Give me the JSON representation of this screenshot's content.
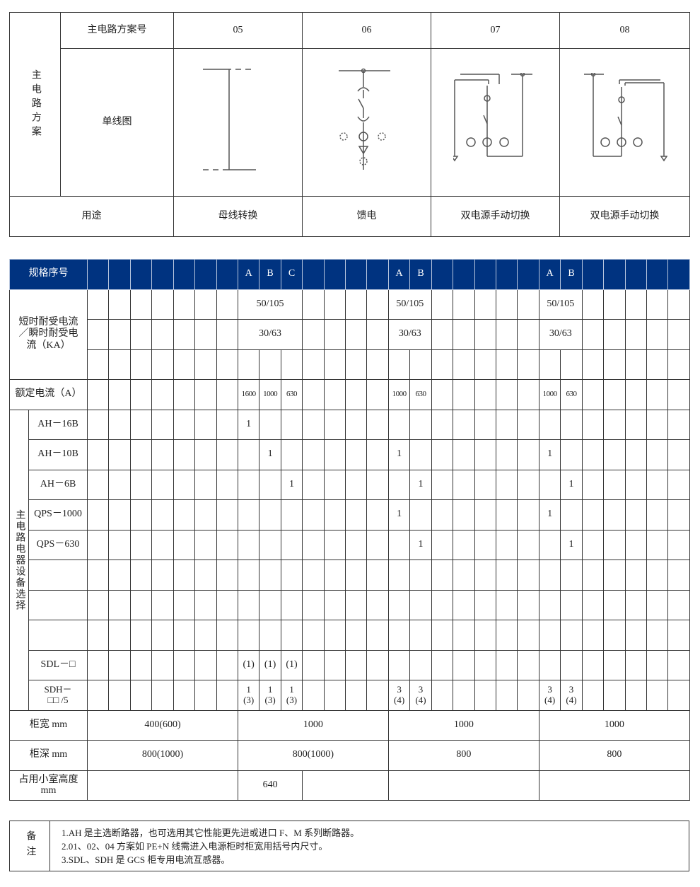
{
  "scheme_table": {
    "side_label": "主电路方案",
    "scheme_no_label": "主电路方案号",
    "diagram_label": "单线图",
    "usage_label": "用途",
    "schemes": [
      {
        "no": "05",
        "usage": "母线转换",
        "diagram": "bus-transfer-diagram"
      },
      {
        "no": "06",
        "usage": "馈电",
        "diagram": "feeder-diagram"
      },
      {
        "no": "07",
        "usage": "双电源手动切换",
        "diagram": "dual-source-switch-diagram"
      },
      {
        "no": "08",
        "usage": "双电源手动切换",
        "diagram": "dual-source-switch-diagram"
      }
    ]
  },
  "spec_table": {
    "header_label": "规格序号",
    "header_cells": [
      "",
      "",
      "",
      "",
      "",
      "",
      "",
      "A",
      "B",
      "C",
      "",
      "",
      "",
      "",
      "A",
      "B",
      "",
      "",
      "",
      "",
      "",
      "A",
      "B",
      "",
      "",
      "",
      "",
      ""
    ],
    "header_color": "#003380",
    "short_time_label": "短时耐受电流／瞬时耐受电流（KA）",
    "short_time_rows": [
      {
        "7": "50/105",
        "14": "50/105",
        "21": "50/105"
      },
      {
        "7": "30/63",
        "14": "30/63",
        "21": "30/63"
      },
      {}
    ],
    "rated_current": {
      "label": "额定电流（A）",
      "values": {
        "7": "1600",
        "8": "1000",
        "9": "630",
        "14": "1000",
        "15": "630",
        "21": "1000",
        "22": "630"
      }
    },
    "equipment_label": "主电路电器设备选择",
    "equipment_rows": [
      {
        "label": "AH－16B",
        "values": {
          "7": "1"
        }
      },
      {
        "label": "AH－10B",
        "values": {
          "8": "1",
          "14": "1",
          "21": "1"
        }
      },
      {
        "label": "AH－6B",
        "values": {
          "9": "1",
          "15": "1",
          "22": "1"
        }
      },
      {
        "label": "QPS－1000",
        "values": {
          "14": "1",
          "21": "1"
        }
      },
      {
        "label": "QPS－630",
        "values": {
          "15": "1",
          "22": "1"
        }
      },
      {
        "label": "",
        "values": {}
      },
      {
        "label": "",
        "values": {}
      },
      {
        "label": "",
        "values": {}
      },
      {
        "label": "SDL－□",
        "values": {
          "7": "(1)",
          "8": "(1)",
          "9": "(1)"
        }
      },
      {
        "label": "SDH－\n□□ /5",
        "values": {
          "7": "1\n(3)",
          "8": "1\n(3)",
          "9": "1\n(3)",
          "14": "3\n(4)",
          "15": "3\n(4)",
          "21": "3\n(4)",
          "22": "3\n(4)"
        }
      }
    ],
    "width_row": {
      "label": "柜宽 mm",
      "values": {
        "0": "400(600)",
        "7": "1000",
        "14": "1000",
        "21": "1000"
      }
    },
    "depth_row": {
      "label": "柜深 mm",
      "values": {
        "0": "800(1000)",
        "7": "800(1000)",
        "14": "800",
        "21": "800"
      }
    },
    "height_row": {
      "label": "占用小室高度\nmm",
      "values": {
        "7": "640"
      }
    }
  },
  "notes": {
    "label": "备注",
    "lines": [
      "1.AH 是主选断路器，也可选用其它性能更先进或进口 F、M 系列断路器。",
      "2.01、02、04 方案如 PE+N 线需进入电源柜时柜宽用括号内尺寸。",
      "3.SDL、SDH 是 GCS 柜专用电流互感器。"
    ]
  }
}
